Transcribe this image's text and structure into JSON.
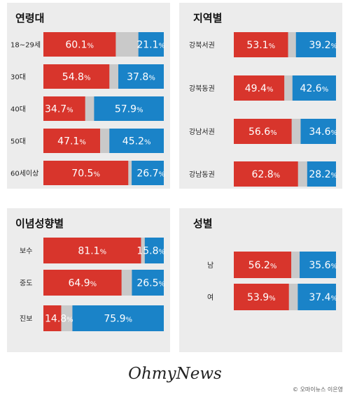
{
  "colors": {
    "left": "#d8352c",
    "neutral": "#c9c9c9",
    "right": "#1a83c8",
    "panel_bg": "#ececec"
  },
  "chart_data": [
    {
      "type": "bar",
      "title": "연령대",
      "categories": [
        "18~29세",
        "30대",
        "40대",
        "50대",
        "60세이상"
      ],
      "series": [
        {
          "values": [
            60.1,
            54.8,
            34.7,
            47.1,
            70.5
          ]
        },
        {
          "values": [
            21.1,
            37.8,
            57.9,
            45.2,
            26.7
          ]
        }
      ],
      "value_suffix": "%",
      "stacked": true,
      "xlim": [
        0,
        100
      ]
    },
    {
      "type": "bar",
      "title": "지역별",
      "categories": [
        "강북서권",
        "강북동권",
        "강남서권",
        "강남동권"
      ],
      "series": [
        {
          "values": [
            53.1,
            49.4,
            56.6,
            62.8
          ]
        },
        {
          "values": [
            39.2,
            42.6,
            34.6,
            28.2
          ]
        }
      ],
      "value_suffix": "%",
      "stacked": true,
      "xlim": [
        0,
        100
      ]
    },
    {
      "type": "bar",
      "title": "이념성향별",
      "categories": [
        "보수",
        "중도",
        "진보"
      ],
      "series": [
        {
          "values": [
            81.1,
            64.9,
            14.8
          ]
        },
        {
          "values": [
            15.8,
            26.5,
            75.9
          ]
        }
      ],
      "value_suffix": "%",
      "stacked": true,
      "xlim": [
        0,
        100
      ]
    },
    {
      "type": "bar",
      "title": "성별",
      "categories": [
        "남",
        "여"
      ],
      "series": [
        {
          "values": [
            56.2,
            53.9
          ]
        },
        {
          "values": [
            35.6,
            37.4
          ]
        }
      ],
      "value_suffix": "%",
      "stacked": true,
      "xlim": [
        0,
        100
      ]
    }
  ],
  "footer": {
    "logo": "OhmyNews",
    "credit": "© 오마이뉴스 이은영"
  }
}
